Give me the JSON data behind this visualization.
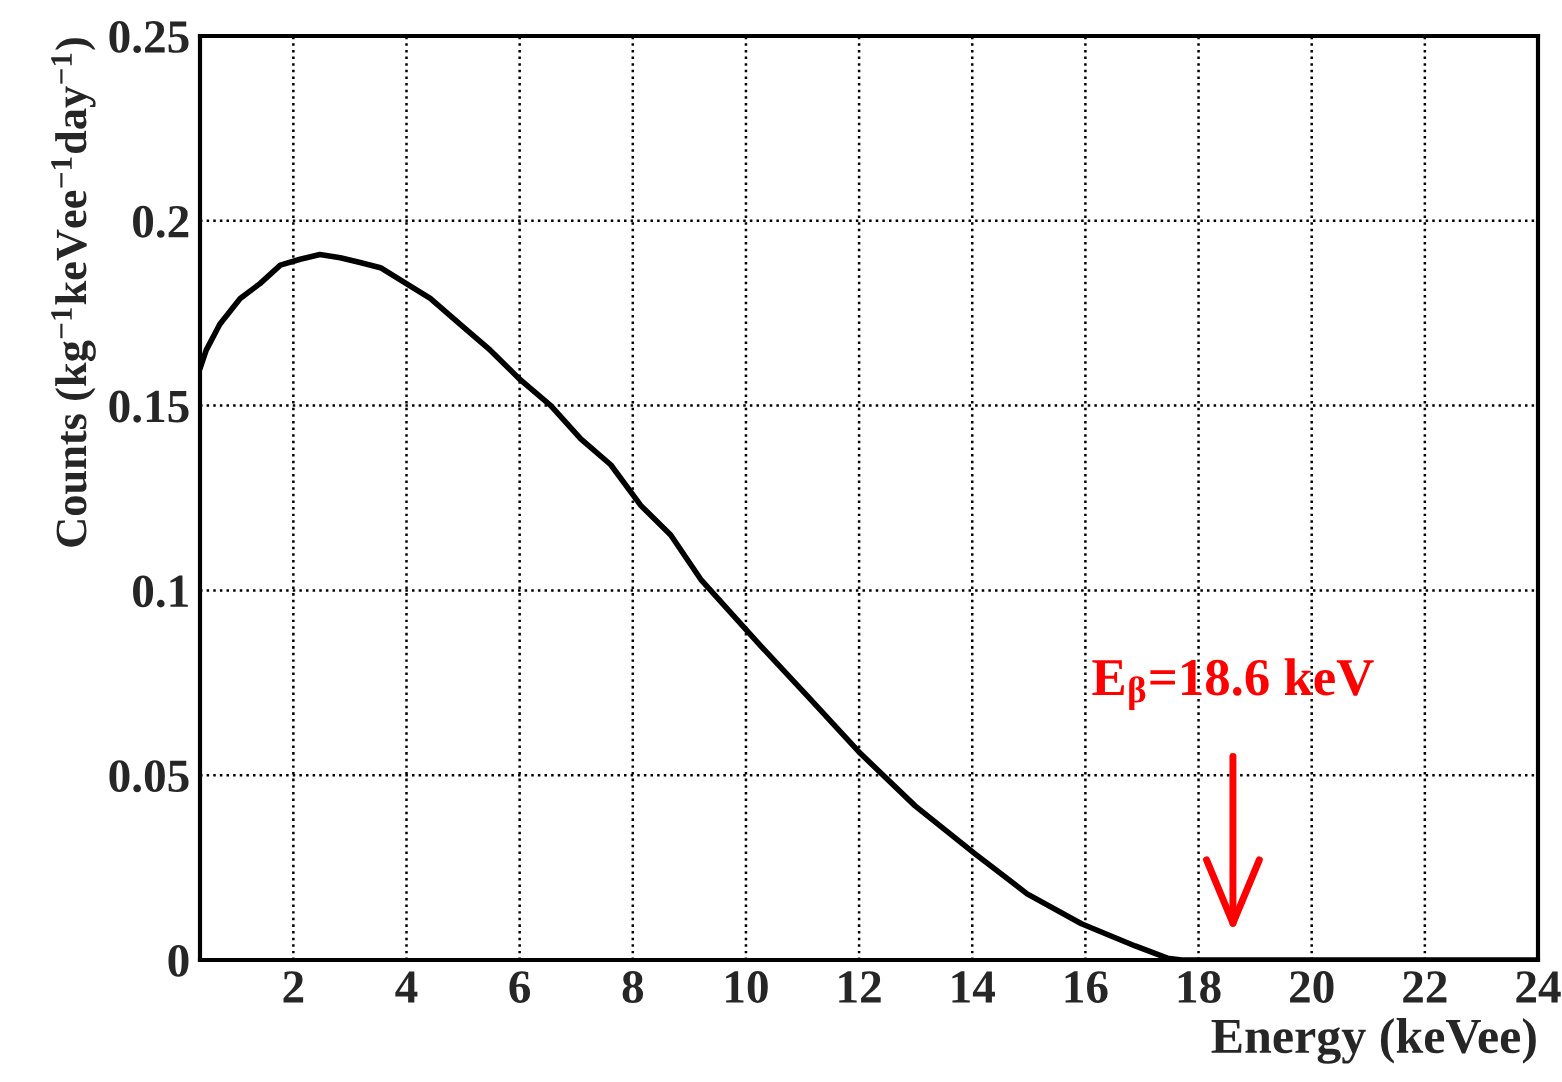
{
  "chart_data": {
    "type": "line",
    "xlabel": "Energy (keVee)",
    "ylabel": "Counts (kg$^{−1}$keVee$^{−1}$day$^{−1}$)",
    "x": [
      0.35,
      0.46,
      0.7,
      1.06,
      1.41,
      1.77,
      2.12,
      2.47,
      2.83,
      3.18,
      3.54,
      3.89,
      4.42,
      4.95,
      5.48,
      6.01,
      6.55,
      7.08,
      7.61,
      8.14,
      8.67,
      9.2,
      10.26,
      11.15,
      12.03,
      12.99,
      14.05,
      14.97,
      15.93,
      16.88,
      17.45,
      17.7,
      20,
      24
    ],
    "series": [
      {
        "color": "#000000",
        "values": [
          0.16,
          0.165,
          0.172,
          0.179,
          0.183,
          0.188,
          0.1896,
          0.1909,
          0.19,
          0.1887,
          0.1873,
          0.184,
          0.179,
          0.172,
          0.165,
          0.157,
          0.15,
          0.141,
          0.134,
          0.123,
          0.115,
          0.103,
          0.085,
          0.0704,
          0.0558,
          0.0417,
          0.0287,
          0.0179,
          0.0098,
          0.0038,
          0.0005,
          0,
          0,
          0
        ]
      }
    ],
    "xlim": [
      0.35,
      24
    ],
    "ylim": [
      0,
      0.25
    ],
    "xticks": [
      2,
      4,
      6,
      8,
      10,
      12,
      14,
      16,
      18,
      20,
      22,
      24
    ],
    "yticks": [
      0,
      0.05,
      0.1,
      0.15,
      0.2,
      0.25
    ],
    "grid": true,
    "annotations": [
      "E$_{β}$=18.6 keV"
    ]
  }
}
